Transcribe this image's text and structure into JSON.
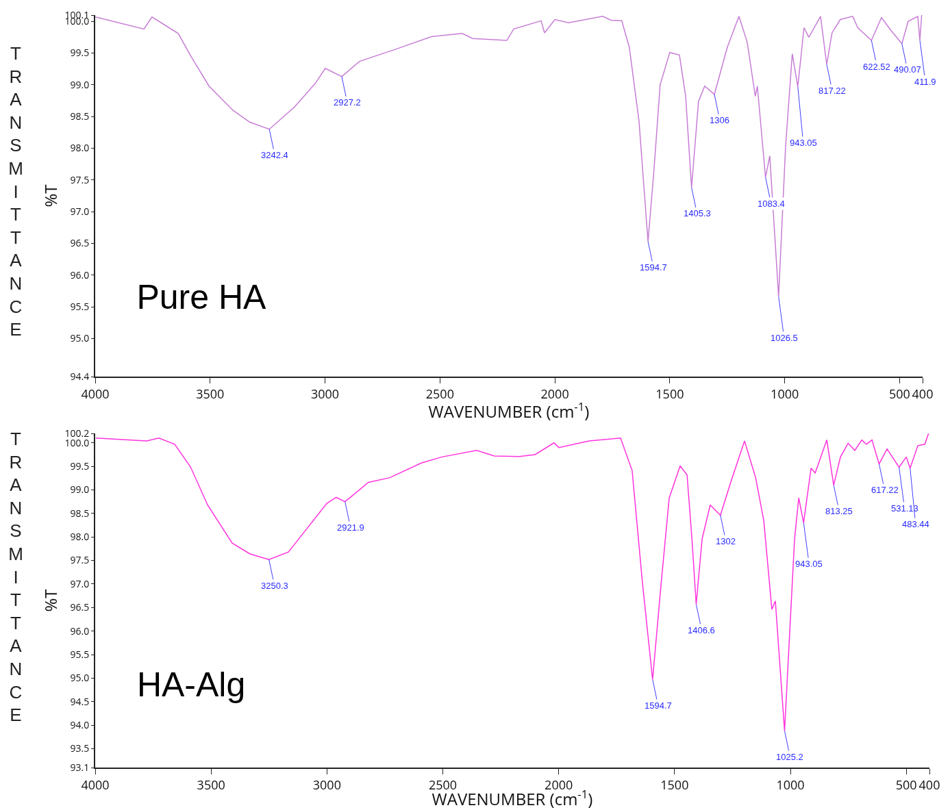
{
  "chart_data": [
    {
      "type": "line",
      "title": "Pure HA",
      "xlabel": "WAVENUMBER (cm$^{-1}$)",
      "ylabel": "%T",
      "xlim": [
        4000,
        400
      ],
      "xticks": [
        4000,
        3500,
        3000,
        2500,
        2000,
        1500,
        1000,
        500,
        400
      ],
      "ylim": [
        94.4,
        100.1
      ],
      "yticks": [
        94.4,
        {
          "value": 95,
          "label": "95.0"
        },
        95.5,
        {
          "value": 96,
          "label": "96.0"
        },
        96.5,
        {
          "value": 97,
          "label": "97.0"
        },
        97.5,
        {
          "value": 98,
          "label": "98.0"
        },
        98.5,
        {
          "value": 99,
          "label": "99.0"
        },
        99.5,
        {
          "value": 100,
          "label": "100.0"
        },
        100.1
      ],
      "grid": false,
      "marker": "none",
      "line_style": "solid",
      "series": [
        {
          "color": "#c77dd6",
          "x": [
            4000,
            3788,
            3753,
            3639,
            3580,
            3505,
            3401,
            3327,
            3242.4,
            3133,
            3043,
            2999,
            2927.2,
            2850,
            2686,
            2537,
            2403,
            2358,
            2209,
            2179,
            2060,
            2045,
            2000,
            1941,
            1792,
            1756,
            1709,
            1676,
            1634,
            1594.7,
            1569,
            1542,
            1500,
            1458,
            1431,
            1405.3,
            1375,
            1348,
            1306,
            1250,
            1199,
            1163,
            1128,
            1119,
            1083.4,
            1065,
            1026.5,
            996,
            967,
            943.05,
            916,
            895,
            844,
            817.22,
            794,
            758,
            704,
            682,
            622.52,
            579,
            538,
            490.07,
            463,
            421,
            411.9,
            404
          ],
          "values": [
            100.07,
            99.88,
            100.07,
            99.81,
            99.43,
            98.98,
            98.6,
            98.41,
            98.3,
            98.65,
            99.02,
            99.26,
            99.13,
            99.37,
            99.57,
            99.76,
            99.81,
            99.73,
            99.7,
            99.88,
            100.01,
            99.82,
            100.03,
            99.98,
            100.08,
            100.02,
            100.01,
            99.59,
            98.43,
            96.53,
            97.65,
            99.0,
            99.51,
            99.47,
            98.82,
            97.38,
            98.74,
            98.98,
            98.85,
            99.59,
            100.08,
            99.67,
            98.82,
            98.98,
            97.54,
            97.88,
            95.66,
            98.04,
            99.49,
            98.97,
            99.9,
            99.75,
            100.08,
            99.32,
            99.82,
            100.03,
            100.08,
            99.9,
            99.7,
            100.06,
            99.86,
            99.65,
            100.0,
            100.08,
            99.7,
            100.1
          ]
        }
      ],
      "annotations": [
        "TRANSMITTANCE",
        {
          "text": "3242.4",
          "x": 3242.4,
          "y": 98.3
        },
        {
          "text": "2927.2",
          "x": 2927.2,
          "y": 99.13
        },
        {
          "text": "1594.7",
          "x": 1594.7,
          "y": 96.53
        },
        {
          "text": "1405.3",
          "x": 1405.3,
          "y": 97.38
        },
        {
          "text": "1306",
          "x": 1306,
          "y": 98.85
        },
        {
          "text": "1083.4",
          "x": 1083.4,
          "y": 97.54
        },
        {
          "text": "1026.5",
          "x": 1026.5,
          "y": 95.66
        },
        {
          "text": "943.05",
          "x": 943.05,
          "y": 98.97
        },
        {
          "text": "817.22",
          "x": 817.22,
          "y": 99.32
        },
        {
          "text": "622.52",
          "x": 622.52,
          "y": 99.7
        },
        {
          "text": "490.07",
          "x": 490.07,
          "y": 99.65
        },
        {
          "text": "411.9",
          "x": 411.9,
          "y": 99.7
        }
      ]
    },
    {
      "type": "line",
      "title": "HA-Alg",
      "xlabel": "WAVENUMBER (cm$^{-1}$)",
      "ylabel": "%T",
      "xlim": [
        4000,
        400
      ],
      "xticks": [
        4000,
        3500,
        3000,
        2500,
        2000,
        1500,
        1000,
        500,
        400
      ],
      "ylim": [
        93.1,
        100.2
      ],
      "yticks": [
        93.1,
        93.5,
        {
          "value": 94,
          "label": "94.0"
        },
        94.5,
        {
          "value": 95,
          "label": "95.0"
        },
        95.5,
        {
          "value": 96,
          "label": "96.0"
        },
        96.5,
        {
          "value": 97,
          "label": "97.0"
        },
        97.5,
        {
          "value": 98,
          "label": "98.0"
        },
        98.5,
        {
          "value": 99,
          "label": "99.0"
        },
        99.5,
        {
          "value": 100,
          "label": "100.0"
        },
        100.2
      ],
      "grid": false,
      "marker": "none",
      "line_style": "solid",
      "series": [
        {
          "color": "#ff33dd",
          "x": [
            3997,
            3778,
            3725,
            3657,
            3589,
            3515,
            3409,
            3332,
            3250.3,
            3166,
            3078,
            3001,
            2960,
            2921.9,
            2821,
            2729,
            2593,
            2504,
            2354,
            2277,
            2170,
            2102,
            2020,
            1999,
            1869,
            1733,
            1683,
            1638,
            1594.7,
            1558,
            1523,
            1476,
            1446,
            1425,
            1406.6,
            1381,
            1346,
            1302,
            1257,
            1198,
            1150,
            1115,
            1080,
            1065,
            1025.2,
            982,
            964,
            943.05,
            911,
            893,
            843,
            813.25,
            784,
            751,
            722,
            692,
            672,
            648,
            617.22,
            583,
            531.13,
            500,
            483.44,
            450,
            420,
            404
          ],
          "values": [
            100.1,
            100.04,
            100.1,
            99.97,
            99.49,
            98.68,
            97.87,
            97.64,
            97.52,
            97.68,
            98.23,
            98.71,
            98.84,
            98.75,
            99.16,
            99.26,
            99.57,
            99.7,
            99.84,
            99.72,
            99.71,
            99.75,
            100.0,
            99.9,
            100.04,
            100.1,
            99.41,
            97.0,
            94.97,
            97.0,
            98.83,
            99.51,
            99.32,
            97.96,
            96.57,
            97.96,
            98.68,
            98.46,
            99.17,
            100.04,
            99.26,
            98.35,
            96.46,
            96.64,
            93.88,
            97.96,
            98.83,
            98.3,
            99.46,
            99.36,
            100.06,
            99.1,
            99.7,
            99.99,
            99.84,
            100.06,
            99.97,
            100.06,
            99.55,
            99.87,
            99.48,
            99.7,
            99.46,
            99.94,
            99.97,
            100.2
          ]
        }
      ],
      "annotations": [
        "TRANSMITTANCE",
        {
          "text": "3250.3",
          "x": 3250.3,
          "y": 97.52
        },
        {
          "text": "2921.9",
          "x": 2921.9,
          "y": 98.75
        },
        {
          "text": "1594.7",
          "x": 1594.7,
          "y": 94.97
        },
        {
          "text": "1406.6",
          "x": 1406.6,
          "y": 96.57
        },
        {
          "text": "1302",
          "x": 1302,
          "y": 98.46
        },
        {
          "text": "1025.2",
          "x": 1025.2,
          "y": 93.88
        },
        {
          "text": "943.05",
          "x": 943.05,
          "y": 98.3
        },
        {
          "text": "813.25",
          "x": 813.25,
          "y": 99.1
        },
        {
          "text": "617.22",
          "x": 617.22,
          "y": 99.55
        },
        {
          "text": "531.13",
          "x": 531.13,
          "y": 99.48
        },
        {
          "text": "483.44",
          "x": 483.44,
          "y": 99.46
        }
      ]
    }
  ]
}
